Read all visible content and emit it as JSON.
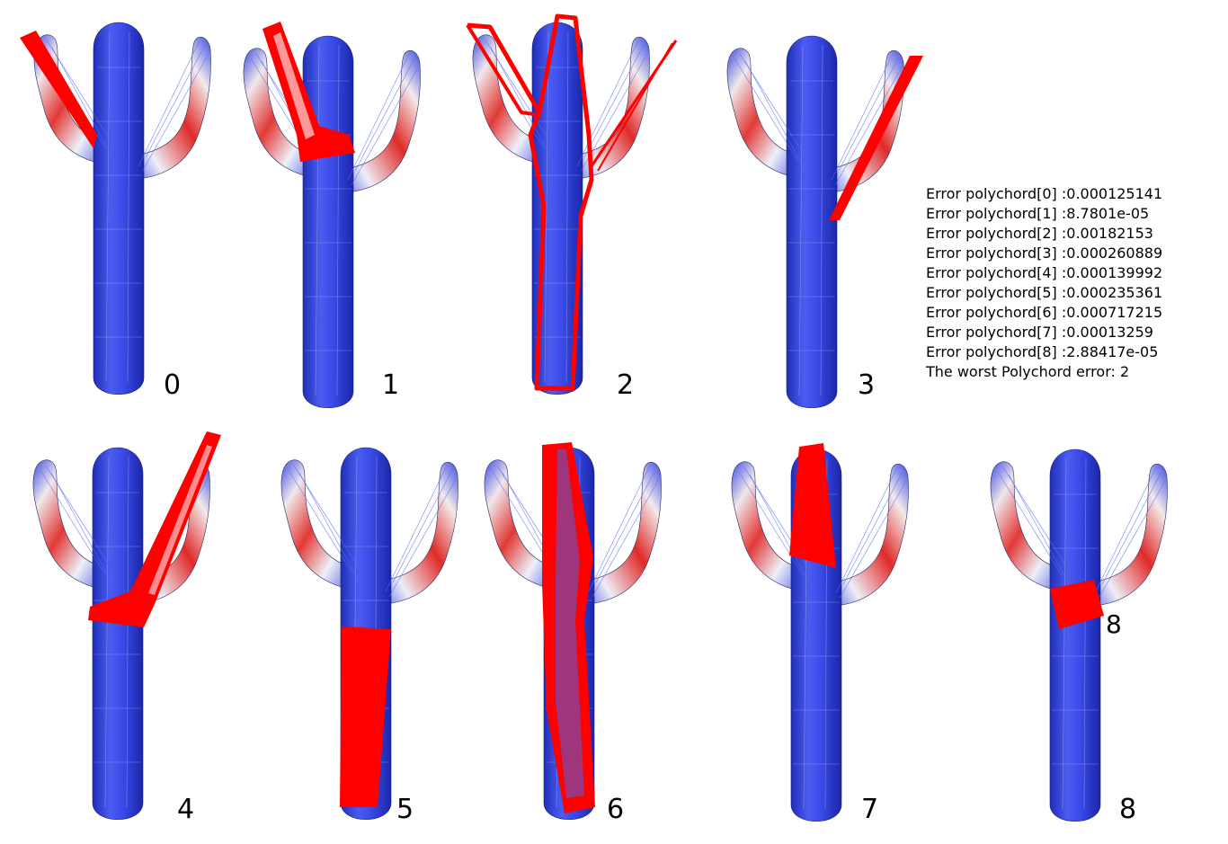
{
  "panels": [
    {
      "label": "0",
      "highlight": "left-arm-strip"
    },
    {
      "label": "1",
      "highlight": "left-arm-loop"
    },
    {
      "label": "2",
      "highlight": "full-loop"
    },
    {
      "label": "3",
      "highlight": "right-arm-strip"
    },
    {
      "label": "4",
      "highlight": "right-arm-loop"
    },
    {
      "label": "5",
      "highlight": "lower-trunk"
    },
    {
      "label": "6",
      "highlight": "trunk-loop"
    },
    {
      "label": "7",
      "highlight": "upper-trunk"
    },
    {
      "label": "8",
      "highlight": "junction-quad"
    }
  ],
  "extra_label": "8",
  "errors": [
    "Error polychord[0] :0.000125141",
    "Error polychord[1] :8.7801e-05",
    "Error polychord[2] :0.00182153",
    "Error polychord[3] :0.000260889",
    "Error polychord[4] :0.000139992",
    "Error polychord[5] :0.000235361",
    "Error polychord[6] :0.000717215",
    "Error polychord[7] :0.00013259",
    "Error polychord[8] :2.88417e-05"
  ],
  "worst_error_text": "The worst Polychord error: 2",
  "colors": {
    "mesh_blue": "#2e3ee0",
    "mesh_white": "#f2f2f7",
    "mesh_red": "#e8201e",
    "highlight": "#ff0000"
  }
}
